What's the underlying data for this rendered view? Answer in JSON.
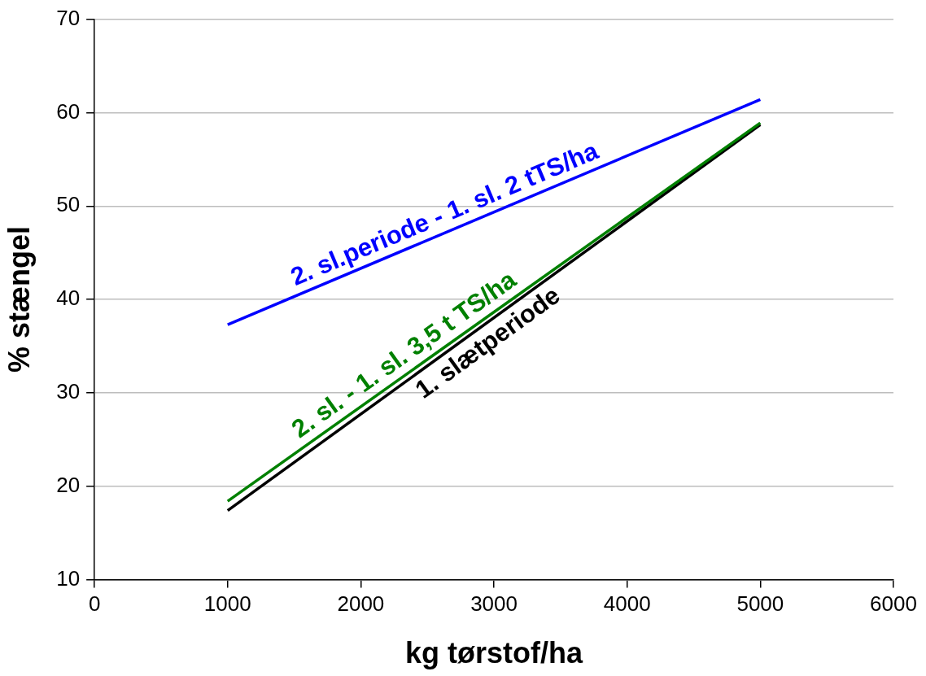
{
  "chart_data": {
    "type": "line",
    "xlabel": "kg tørstof/ha",
    "ylabel": "% stængel",
    "x": [
      1000,
      5000
    ],
    "series": [
      {
        "name": "2. sl.periode - 1. sl. 2 tTS/ha",
        "color": "#0000ff",
        "values": [
          37.3,
          61.4
        ]
      },
      {
        "name": "2. sl. - 1. sl. 3,5 t TS/ha",
        "color": "#008000",
        "values": [
          18.4,
          58.9
        ]
      },
      {
        "name": "1. slætperiode",
        "color": "#000000",
        "values": [
          17.4,
          58.7
        ]
      }
    ],
    "xlim": [
      0,
      6000
    ],
    "xticks": [
      0,
      1000,
      2000,
      3000,
      4000,
      5000,
      6000
    ],
    "ylim": [
      10,
      70
    ],
    "yticks": [
      10,
      20,
      30,
      40,
      50,
      60,
      70
    ],
    "grid": "y",
    "legend": false,
    "marker": "none",
    "line_style": "solid"
  }
}
